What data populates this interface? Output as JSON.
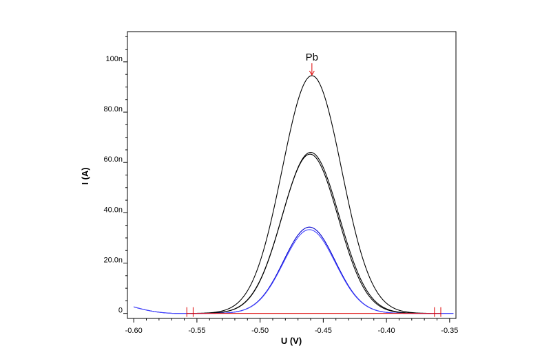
{
  "chart_data": {
    "type": "line",
    "xlabel": "U (V)",
    "ylabel": "I (A)",
    "xlim": [
      -0.605,
      -0.345
    ],
    "ylim": [
      -2,
      112
    ],
    "x_ticks": [
      {
        "value": -0.6,
        "label": "-0.60"
      },
      {
        "value": -0.55,
        "label": "-0.55"
      },
      {
        "value": -0.5,
        "label": "-0.50"
      },
      {
        "value": -0.45,
        "label": "-0.45"
      },
      {
        "value": -0.4,
        "label": "-0.40"
      },
      {
        "value": -0.35,
        "label": "-0.35"
      }
    ],
    "y_ticks": [
      {
        "value": 0,
        "label": "0"
      },
      {
        "value": 20,
        "label": "20.0n"
      },
      {
        "value": 40,
        "label": "40.0n"
      },
      {
        "value": 60,
        "label": "60.0n"
      },
      {
        "value": 80,
        "label": "80.0n"
      },
      {
        "value": 100,
        "label": "100n"
      }
    ],
    "grid": false,
    "peak_annotation": {
      "label": "Pb",
      "x": -0.459,
      "y": 94.5
    },
    "series": [
      {
        "color": "#000000",
        "x_start": -0.555,
        "x_end": -0.365,
        "peak": 94.5,
        "center": -0.459,
        "sigma": 0.0235,
        "offset": 0
      },
      {
        "color": "#000000",
        "x_start": -0.555,
        "x_end": -0.365,
        "peak": 64,
        "center": -0.46,
        "sigma": 0.0225,
        "offset": 0
      },
      {
        "color": "#000000",
        "x_start": -0.555,
        "x_end": -0.365,
        "peak": 63.3,
        "center": -0.4605,
        "sigma": 0.0222,
        "offset": 0
      },
      {
        "color": "#0000cc",
        "x_start": -0.6,
        "x_end": -0.347,
        "peak": 34.3,
        "center": -0.461,
        "sigma": 0.0205,
        "offset": 0
      },
      {
        "color": "#4444ff",
        "x_start": -0.6,
        "x_end": -0.347,
        "peak": 33.3,
        "center": -0.461,
        "sigma": 0.0205,
        "offset": 0
      }
    ],
    "baseline": {
      "color": "#dd0000",
      "x_start": -0.558,
      "x_end": -0.357,
      "y": 0
    },
    "baseline_markers": [
      -0.558,
      -0.553,
      -0.362,
      -0.357
    ]
  }
}
